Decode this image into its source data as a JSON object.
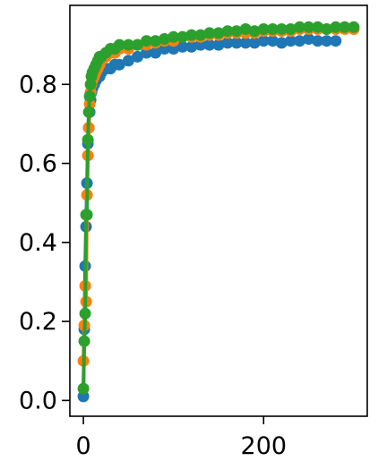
{
  "chart_data": {
    "type": "line",
    "title": "",
    "xlabel": "",
    "ylabel": "",
    "xlim": [
      -15,
      315
    ],
    "ylim": [
      -0.04,
      1.0
    ],
    "xticks": [
      {
        "value": 0,
        "label": "0"
      },
      {
        "value": 200,
        "label": "200"
      }
    ],
    "yticks": [
      {
        "value": 0.0,
        "label": "0.0"
      },
      {
        "value": 0.2,
        "label": "0.2"
      },
      {
        "value": 0.4,
        "label": "0.4"
      },
      {
        "value": 0.6,
        "label": "0.6"
      },
      {
        "value": 0.8,
        "label": "0.8"
      }
    ],
    "grid": false,
    "legend": "none",
    "series": [
      {
        "color": "#1f77b4",
        "x": [
          0,
          1,
          2,
          3,
          4,
          5,
          6,
          7,
          8,
          9,
          10,
          12,
          14,
          16,
          18,
          20,
          25,
          30,
          35,
          40,
          50,
          60,
          70,
          80,
          90,
          100,
          110,
          120,
          130,
          140,
          150,
          160,
          170,
          180,
          190,
          200,
          210,
          220,
          230,
          240,
          250,
          260,
          270,
          280
        ],
        "y": [
          0.01,
          0.18,
          0.34,
          0.44,
          0.55,
          0.65,
          0.69,
          0.73,
          0.76,
          0.78,
          0.79,
          0.8,
          0.81,
          0.82,
          0.82,
          0.83,
          0.84,
          0.84,
          0.85,
          0.85,
          0.86,
          0.87,
          0.88,
          0.88,
          0.89,
          0.89,
          0.895,
          0.895,
          0.9,
          0.9,
          0.9,
          0.905,
          0.905,
          0.905,
          0.905,
          0.91,
          0.91,
          0.905,
          0.91,
          0.91,
          0.915,
          0.91,
          0.91,
          0.91
        ]
      },
      {
        "color": "#ff7f0e",
        "x": [
          0,
          1,
          2,
          3,
          4,
          5,
          6,
          7,
          8,
          9,
          10,
          12,
          14,
          16,
          18,
          20,
          25,
          30,
          35,
          40,
          50,
          60,
          70,
          80,
          90,
          100,
          110,
          120,
          130,
          140,
          150,
          160,
          170,
          180,
          190,
          200,
          210,
          220,
          230,
          240,
          250,
          260,
          270,
          280,
          290,
          300
        ],
        "y": [
          0.1,
          0.19,
          0.29,
          0.25,
          0.52,
          0.62,
          0.69,
          0.75,
          0.78,
          0.8,
          0.81,
          0.82,
          0.83,
          0.84,
          0.85,
          0.86,
          0.87,
          0.88,
          0.88,
          0.89,
          0.89,
          0.9,
          0.9,
          0.905,
          0.91,
          0.91,
          0.92,
          0.92,
          0.92,
          0.925,
          0.925,
          0.93,
          0.93,
          0.93,
          0.93,
          0.935,
          0.935,
          0.935,
          0.935,
          0.94,
          0.94,
          0.94,
          0.94,
          0.94,
          0.94,
          0.94
        ]
      },
      {
        "color": "#2ca02c",
        "x": [
          0,
          1,
          2,
          3,
          4,
          5,
          6,
          7,
          8,
          9,
          10,
          12,
          14,
          16,
          18,
          20,
          25,
          30,
          35,
          40,
          50,
          60,
          70,
          80,
          90,
          100,
          110,
          120,
          130,
          140,
          150,
          160,
          170,
          180,
          190,
          200,
          210,
          220,
          230,
          240,
          250,
          260,
          270,
          280,
          290,
          300
        ],
        "y": [
          0.03,
          0.15,
          0.22,
          0.47,
          0.47,
          0.66,
          0.73,
          0.77,
          0.8,
          0.82,
          0.83,
          0.84,
          0.85,
          0.86,
          0.87,
          0.87,
          0.88,
          0.89,
          0.89,
          0.9,
          0.9,
          0.9,
          0.91,
          0.91,
          0.915,
          0.92,
          0.92,
          0.925,
          0.925,
          0.93,
          0.93,
          0.935,
          0.935,
          0.94,
          0.935,
          0.94,
          0.94,
          0.94,
          0.94,
          0.945,
          0.945,
          0.945,
          0.94,
          0.945,
          0.945,
          0.945
        ]
      }
    ]
  }
}
